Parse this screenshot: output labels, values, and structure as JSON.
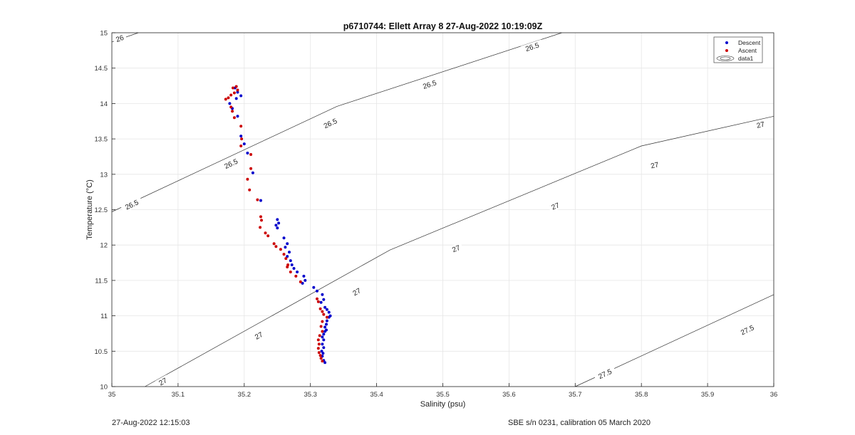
{
  "chart_data": {
    "type": "scatter",
    "title": "p6710744: Ellett Array 8 27-Aug-2022 10:19:09Z",
    "xlabel": "Salinity (psu)",
    "ylabel": "Temperature (°C)",
    "xlim": [
      35,
      36
    ],
    "ylim": [
      10,
      15
    ],
    "xticks": [
      "35",
      "35.1",
      "35.2",
      "35.3",
      "35.4",
      "35.5",
      "35.6",
      "35.7",
      "35.8",
      "35.9",
      "36"
    ],
    "yticks": [
      "10",
      "10.5",
      "11",
      "11.5",
      "12",
      "12.5",
      "13",
      "13.5",
      "14",
      "14.5",
      "15"
    ],
    "grid": true,
    "legend": {
      "position": "top-right",
      "entries": [
        "Descent",
        "Ascent",
        "data1"
      ]
    },
    "contours": [
      {
        "level": "26",
        "points": [
          [
            35.0,
            14.87
          ],
          [
            35.04,
            15.0
          ]
        ],
        "labels": [
          [
            35.012,
            14.92
          ]
        ]
      },
      {
        "level": "26.5",
        "points": [
          [
            35.0,
            12.47
          ],
          [
            35.34,
            13.96
          ],
          [
            35.68,
            15.0
          ]
        ],
        "labels": [
          [
            35.03,
            12.57
          ],
          [
            35.18,
            13.15
          ],
          [
            35.33,
            13.72
          ],
          [
            35.48,
            14.27
          ],
          [
            35.635,
            14.8
          ]
        ]
      },
      {
        "level": "27",
        "points": [
          [
            35.05,
            10.0
          ],
          [
            35.42,
            11.93
          ],
          [
            35.8,
            13.4
          ],
          [
            36.0,
            13.82
          ]
        ],
        "labels": [
          [
            35.077,
            10.07
          ],
          [
            35.222,
            10.72
          ],
          [
            35.37,
            11.34
          ],
          [
            35.52,
            11.95
          ],
          [
            35.67,
            12.55
          ],
          [
            35.82,
            13.13
          ],
          [
            35.98,
            13.7
          ]
        ]
      },
      {
        "level": "27.5",
        "points": [
          [
            35.7,
            10.0
          ],
          [
            36.0,
            11.3
          ]
        ],
        "labels": [
          [
            35.745,
            10.18
          ],
          [
            35.96,
            10.8
          ]
        ]
      }
    ],
    "series": [
      {
        "name": "Descent",
        "color": "#0000cc",
        "points": [
          [
            35.186,
            14.22
          ],
          [
            35.19,
            14.16
          ],
          [
            35.195,
            14.11
          ],
          [
            35.188,
            14.07
          ],
          [
            35.178,
            14.0
          ],
          [
            35.182,
            13.93
          ],
          [
            35.19,
            13.82
          ],
          [
            35.195,
            13.54
          ],
          [
            35.2,
            13.43
          ],
          [
            35.205,
            13.3
          ],
          [
            35.213,
            13.02
          ],
          [
            35.225,
            12.63
          ],
          [
            35.25,
            12.36
          ],
          [
            35.252,
            12.31
          ],
          [
            35.248,
            12.28
          ],
          [
            35.25,
            12.24
          ],
          [
            35.26,
            12.1
          ],
          [
            35.265,
            12.02
          ],
          [
            35.262,
            11.97
          ],
          [
            35.268,
            11.9
          ],
          [
            35.265,
            11.84
          ],
          [
            35.27,
            11.78
          ],
          [
            35.272,
            11.72
          ],
          [
            35.275,
            11.67
          ],
          [
            35.28,
            11.62
          ],
          [
            35.29,
            11.56
          ],
          [
            35.292,
            11.5
          ],
          [
            35.288,
            11.46
          ],
          [
            35.305,
            11.4
          ],
          [
            35.31,
            11.35
          ],
          [
            35.318,
            11.3
          ],
          [
            35.32,
            11.23
          ],
          [
            35.316,
            11.19
          ],
          [
            35.322,
            11.12
          ],
          [
            35.325,
            11.09
          ],
          [
            35.328,
            11.05
          ],
          [
            35.33,
            11.0
          ],
          [
            35.328,
            10.98
          ],
          [
            35.325,
            10.93
          ],
          [
            35.324,
            10.88
          ],
          [
            35.322,
            10.84
          ],
          [
            35.324,
            10.8
          ],
          [
            35.322,
            10.78
          ],
          [
            35.32,
            10.74
          ],
          [
            35.318,
            10.7
          ],
          [
            35.32,
            10.66
          ],
          [
            35.318,
            10.6
          ],
          [
            35.32,
            10.55
          ],
          [
            35.317,
            10.5
          ],
          [
            35.319,
            10.47
          ],
          [
            35.318,
            10.43
          ],
          [
            35.32,
            10.37
          ],
          [
            35.322,
            10.34
          ]
        ]
      },
      {
        "name": "Ascent",
        "color": "#cc0000",
        "points": [
          [
            35.188,
            14.24
          ],
          [
            35.183,
            14.22
          ],
          [
            35.19,
            14.19
          ],
          [
            35.185,
            14.15
          ],
          [
            35.18,
            14.12
          ],
          [
            35.176,
            14.08
          ],
          [
            35.172,
            14.06
          ],
          [
            35.18,
            13.95
          ],
          [
            35.182,
            13.89
          ],
          [
            35.185,
            13.8
          ],
          [
            35.195,
            13.68
          ],
          [
            35.196,
            13.5
          ],
          [
            35.195,
            13.4
          ],
          [
            35.21,
            13.28
          ],
          [
            35.21,
            13.08
          ],
          [
            35.205,
            12.93
          ],
          [
            35.208,
            12.78
          ],
          [
            35.22,
            12.64
          ],
          [
            35.225,
            12.4
          ],
          [
            35.226,
            12.35
          ],
          [
            35.224,
            12.25
          ],
          [
            35.232,
            12.17
          ],
          [
            35.236,
            12.13
          ],
          [
            35.245,
            12.02
          ],
          [
            35.248,
            11.98
          ],
          [
            35.255,
            11.94
          ],
          [
            35.26,
            11.87
          ],
          [
            35.263,
            11.81
          ],
          [
            35.266,
            11.72
          ],
          [
            35.265,
            11.69
          ],
          [
            35.27,
            11.62
          ],
          [
            35.278,
            11.56
          ],
          [
            35.285,
            11.48
          ],
          [
            35.31,
            11.24
          ],
          [
            35.312,
            11.2
          ],
          [
            35.315,
            11.1
          ],
          [
            35.318,
            11.06
          ],
          [
            35.32,
            11.02
          ],
          [
            35.325,
            10.98
          ],
          [
            35.318,
            10.92
          ],
          [
            35.316,
            10.85
          ],
          [
            35.318,
            10.78
          ],
          [
            35.314,
            10.72
          ],
          [
            35.312,
            10.66
          ],
          [
            35.313,
            10.6
          ],
          [
            35.312,
            10.54
          ],
          [
            35.313,
            10.48
          ],
          [
            35.315,
            10.44
          ],
          [
            35.316,
            10.4
          ],
          [
            35.318,
            10.36
          ]
        ]
      }
    ]
  },
  "footer": {
    "left": "27-Aug-2022 12:15:03",
    "right": "SBE s/n 0231, calibration 05 March 2020"
  }
}
